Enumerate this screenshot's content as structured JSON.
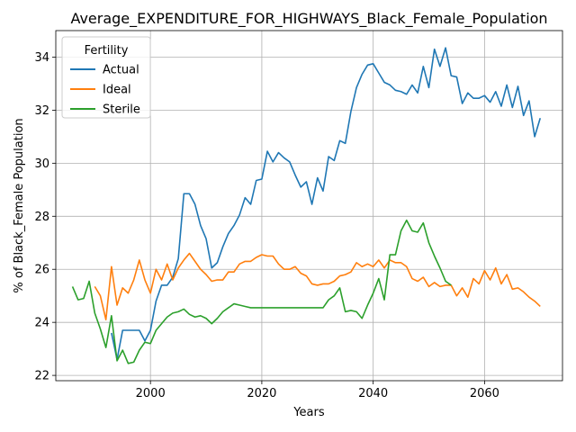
{
  "chart_data": {
    "type": "line",
    "title": "Average_EXPENDITURE_FOR_HIGHWAYS_Black_Female_Population",
    "xlabel": "Years",
    "ylabel": "% of Black_Female Population",
    "xlim": [
      1983,
      2074
    ],
    "ylim": [
      21.8,
      35.0
    ],
    "xticks": [
      2000,
      2020,
      2040,
      2060
    ],
    "yticks": [
      22,
      24,
      26,
      28,
      30,
      32,
      34
    ],
    "grid": true,
    "legend": {
      "title": "Fertility",
      "position": "top-left"
    },
    "x": [
      1986,
      1987,
      1988,
      1989,
      1990,
      1991,
      1992,
      1993,
      1994,
      1995,
      1996,
      1997,
      1998,
      1999,
      2000,
      2001,
      2002,
      2003,
      2004,
      2005,
      2006,
      2007,
      2008,
      2009,
      2010,
      2011,
      2012,
      2013,
      2014,
      2015,
      2016,
      2017,
      2018,
      2019,
      2020,
      2021,
      2022,
      2023,
      2024,
      2025,
      2026,
      2027,
      2028,
      2029,
      2030,
      2031,
      2032,
      2033,
      2034,
      2035,
      2036,
      2037,
      2038,
      2039,
      2040,
      2041,
      2042,
      2043,
      2044,
      2045,
      2046,
      2047,
      2048,
      2049,
      2050,
      2051,
      2052,
      2053,
      2054,
      2055,
      2056,
      2057,
      2058,
      2059,
      2060,
      2061,
      2062,
      2063,
      2064,
      2065,
      2066,
      2067,
      2068,
      2069,
      2070
    ],
    "series": [
      {
        "name": "Actual",
        "color": "#1f77b4",
        "values": [
          null,
          null,
          null,
          null,
          null,
          null,
          null,
          23.6,
          22.6,
          23.7,
          23.7,
          23.7,
          23.7,
          23.3,
          23.7,
          24.8,
          25.4,
          25.4,
          25.7,
          26.4,
          28.85,
          28.85,
          28.45,
          27.65,
          27.15,
          26.05,
          26.25,
          26.85,
          27.35,
          27.65,
          28.05,
          28.7,
          28.45,
          29.35,
          29.4,
          30.45,
          30.05,
          30.4,
          30.2,
          30.05,
          29.55,
          29.1,
          29.3,
          28.45,
          29.45,
          28.95,
          30.25,
          30.1,
          30.85,
          30.75,
          31.95,
          32.85,
          33.35,
          33.7,
          33.75,
          33.4,
          33.05,
          32.95,
          32.75,
          32.7,
          32.6,
          32.95,
          32.65,
          33.65,
          32.85,
          34.3,
          33.65,
          34.35,
          33.3,
          33.25,
          32.25,
          32.65,
          32.45,
          32.45,
          32.55,
          32.3,
          32.7,
          32.15,
          32.95,
          32.1,
          32.9,
          31.8,
          32.35,
          31.0,
          31.7
        ]
      },
      {
        "name": "Ideal",
        "color": "#ff7f0e",
        "values": [
          null,
          null,
          null,
          null,
          25.35,
          25.0,
          24.1,
          26.1,
          24.65,
          25.3,
          25.1,
          25.6,
          26.35,
          25.6,
          25.1,
          26.0,
          25.6,
          26.2,
          25.6,
          26.05,
          26.35,
          26.6,
          26.3,
          26.0,
          25.8,
          25.55,
          25.6,
          25.6,
          25.9,
          25.9,
          26.2,
          26.3,
          26.3,
          26.45,
          26.55,
          26.5,
          26.5,
          26.2,
          26.0,
          26.0,
          26.1,
          25.85,
          25.75,
          25.45,
          25.4,
          25.45,
          25.45,
          25.55,
          25.75,
          25.8,
          25.9,
          26.25,
          26.1,
          26.2,
          26.1,
          26.35,
          26.05,
          26.35,
          26.25,
          26.25,
          26.1,
          25.65,
          25.55,
          25.7,
          25.35,
          25.5,
          25.35,
          25.4,
          25.4,
          25.0,
          25.3,
          24.95,
          25.65,
          25.45,
          25.95,
          25.6,
          26.05,
          25.45,
          25.8,
          25.25,
          25.3,
          25.15,
          24.95,
          24.8,
          24.6
        ]
      },
      {
        "name": "Sterile",
        "color": "#2ca02c",
        "values": [
          25.35,
          24.85,
          24.9,
          25.55,
          24.35,
          23.75,
          23.05,
          24.25,
          22.55,
          22.95,
          22.45,
          22.5,
          22.95,
          23.25,
          23.2,
          23.7,
          23.95,
          24.2,
          24.35,
          24.4,
          24.5,
          24.3,
          24.2,
          24.25,
          24.15,
          23.95,
          24.15,
          24.4,
          24.55,
          24.7,
          24.65,
          24.6,
          24.55,
          24.55,
          24.55,
          24.55,
          24.55,
          24.55,
          24.55,
          24.55,
          24.55,
          24.55,
          24.55,
          24.55,
          24.55,
          24.55,
          24.85,
          25.0,
          25.3,
          24.4,
          24.45,
          24.4,
          24.15,
          24.65,
          25.1,
          25.65,
          24.85,
          26.55,
          26.55,
          27.45,
          27.85,
          27.45,
          27.4,
          27.75,
          27.0,
          26.5,
          26.05,
          25.55,
          25.4,
          null,
          null,
          null,
          null,
          null,
          null,
          null,
          null,
          null,
          null,
          null,
          null,
          null,
          null,
          null,
          null
        ]
      }
    ]
  }
}
